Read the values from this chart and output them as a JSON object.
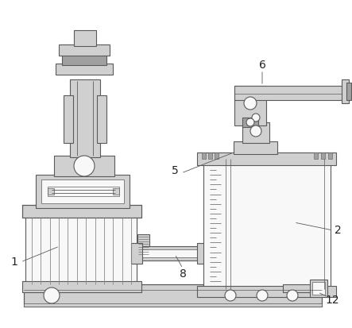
{
  "bg_color": "#ffffff",
  "line_color": "#5a5a5a",
  "fill_light": "#d0d0d0",
  "fill_white": "#f8f8f8",
  "fill_dark": "#a0a0a0",
  "label_color": "#222222",
  "figsize": [
    4.43,
    4.13
  ],
  "dpi": 100
}
